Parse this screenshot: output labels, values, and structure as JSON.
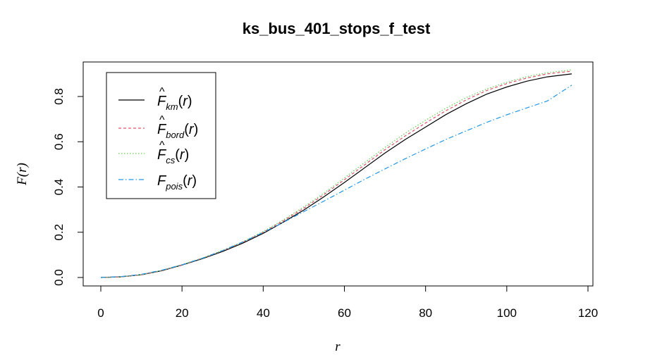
{
  "chart_data": {
    "type": "line",
    "title": "ks_bus_401_stops_f_test",
    "xlabel": "r",
    "ylabel": "F(r)",
    "xlim": [
      0,
      120
    ],
    "ylim": [
      0,
      0.9
    ],
    "x_ticks": [
      0,
      20,
      40,
      60,
      80,
      100,
      120
    ],
    "y_ticks": [
      0.0,
      0.2,
      0.4,
      0.6,
      0.8
    ],
    "x_tick_labels": [
      "0",
      "20",
      "40",
      "60",
      "80",
      "100",
      "120"
    ],
    "y_tick_labels": [
      "0.0",
      "0.2",
      "0.4",
      "0.6",
      "0.8"
    ],
    "grid": false,
    "legend_position": "top-left",
    "series": [
      {
        "name": "F̂km(r)",
        "symbol": "F",
        "hat": true,
        "sub": "km",
        "color": "#000000",
        "dash": "none",
        "x": [
          0,
          5,
          10,
          15,
          20,
          25,
          30,
          35,
          40,
          45,
          50,
          55,
          60,
          65,
          70,
          75,
          80,
          85,
          90,
          95,
          100,
          105,
          110,
          116
        ],
        "y": [
          0.0,
          0.003,
          0.012,
          0.03,
          0.055,
          0.083,
          0.115,
          0.152,
          0.195,
          0.245,
          0.298,
          0.357,
          0.42,
          0.485,
          0.55,
          0.61,
          0.665,
          0.72,
          0.768,
          0.81,
          0.842,
          0.868,
          0.887,
          0.9
        ]
      },
      {
        "name": "F̂bord(r)",
        "symbol": "F",
        "hat": true,
        "sub": "bord",
        "color": "#DF536B",
        "dash": "4,3",
        "x": [
          0,
          5,
          10,
          15,
          20,
          25,
          30,
          35,
          40,
          45,
          50,
          55,
          60,
          65,
          70,
          75,
          80,
          85,
          90,
          95,
          100,
          105,
          110,
          116
        ],
        "y": [
          0.0,
          0.003,
          0.012,
          0.031,
          0.056,
          0.085,
          0.118,
          0.156,
          0.2,
          0.251,
          0.306,
          0.367,
          0.432,
          0.498,
          0.565,
          0.626,
          0.683,
          0.737,
          0.785,
          0.826,
          0.857,
          0.882,
          0.9,
          0.912
        ]
      },
      {
        "name": "F̂cs(r)",
        "symbol": "F",
        "hat": true,
        "sub": "cs",
        "color": "#61D04F",
        "dash": "1.5,2.5",
        "x": [
          0,
          5,
          10,
          15,
          20,
          25,
          30,
          35,
          40,
          45,
          50,
          55,
          60,
          65,
          70,
          75,
          80,
          85,
          90,
          95,
          100,
          105,
          110,
          116
        ],
        "y": [
          0.0,
          0.003,
          0.012,
          0.031,
          0.057,
          0.086,
          0.12,
          0.158,
          0.203,
          0.255,
          0.312,
          0.373,
          0.44,
          0.508,
          0.575,
          0.638,
          0.695,
          0.748,
          0.795,
          0.833,
          0.863,
          0.888,
          0.905,
          0.918
        ]
      },
      {
        "name": "Fpois(r)",
        "symbol": "F",
        "hat": false,
        "sub": "pois",
        "color": "#2297E6",
        "dash": "7,3,1.5,3",
        "x": [
          0,
          5,
          10,
          15,
          20,
          25,
          30,
          35,
          40,
          45,
          50,
          55,
          60,
          65,
          70,
          75,
          80,
          85,
          90,
          95,
          100,
          105,
          110,
          116
        ],
        "y": [
          0.0,
          0.004,
          0.014,
          0.032,
          0.056,
          0.085,
          0.119,
          0.157,
          0.199,
          0.244,
          0.291,
          0.338,
          0.386,
          0.434,
          0.48,
          0.525,
          0.568,
          0.61,
          0.648,
          0.685,
          0.719,
          0.75,
          0.78,
          0.85
        ]
      }
    ]
  }
}
